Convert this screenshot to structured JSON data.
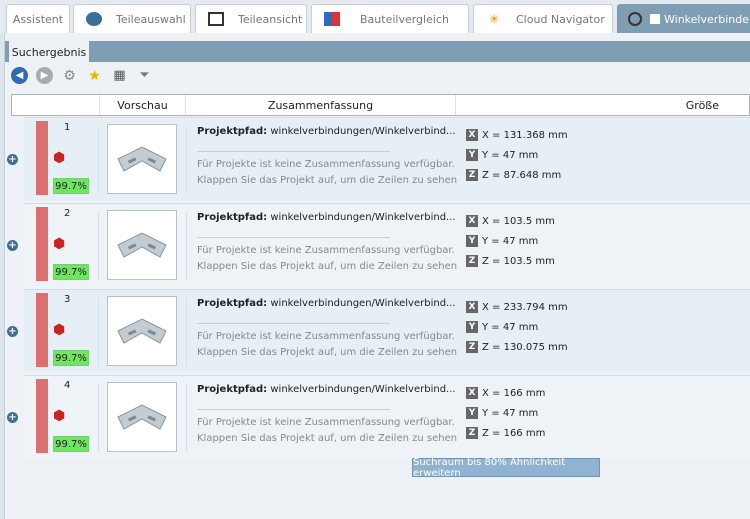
{
  "tabs": [
    {
      "label": "Assistent",
      "icon": ""
    },
    {
      "label": "Teileauswahl",
      "icon": "globe-icon"
    },
    {
      "label": "Teileansicht",
      "icon": "cubes-icon"
    },
    {
      "label": "Bauteilvergleich",
      "icon": "compare-icon"
    },
    {
      "label": "Cloud Navigator",
      "icon": "network-icon"
    },
    {
      "label": "Winkelverbinder",
      "icon": "search-magnifier-icon",
      "active": true
    }
  ],
  "subtab": "Suchergebnis",
  "toolbar": [
    "back-icon",
    "forward-icon",
    "gear-icon",
    "favorite-save-icon",
    "table-save-icon",
    "filter-save-icon"
  ],
  "columns": {
    "preview": "Vorschau",
    "summary": "Zusammenfassung",
    "size": "Größe"
  },
  "accent": "#7f9db3",
  "results": [
    {
      "rank": "1",
      "match": "99.7%",
      "path_label": "Projektpfad:",
      "path": "winkelverbindungen/Winkelverbind...",
      "desc1": "Für Projekte ist keine Zusammenfassung verfügbar.",
      "desc2": "Klappen Sie das Projekt auf, um die Zeilen zu sehen",
      "x": "X = 131.368 mm",
      "y": "Y = 47 mm",
      "z": "Z = 87.648 mm"
    },
    {
      "rank": "2",
      "match": "99.7%",
      "path_label": "Projektpfad:",
      "path": "winkelverbindungen/Winkelverbind...",
      "desc1": "Für Projekte ist keine Zusammenfassung verfügbar.",
      "desc2": "Klappen Sie das Projekt auf, um die Zeilen zu sehen",
      "x": "X = 103.5 mm",
      "y": "Y = 47 mm",
      "z": "Z = 103.5 mm"
    },
    {
      "rank": "3",
      "match": "99.7%",
      "path_label": "Projektpfad:",
      "path": "winkelverbindungen/Winkelverbind...",
      "desc1": "Für Projekte ist keine Zusammenfassung verfügbar.",
      "desc2": "Klappen Sie das Projekt auf, um die Zeilen zu sehen",
      "x": "X = 233.794 mm",
      "y": "Y = 47 mm",
      "z": "Z = 130.075 mm"
    },
    {
      "rank": "4",
      "match": "99.7%",
      "path_label": "Projektpfad:",
      "path": "winkelverbindungen/Winkelverbind...",
      "desc1": "Für Projekte ist keine Zusammenfassung verfügbar.",
      "desc2": "Klappen Sie das Projekt auf, um die Zeilen zu sehen",
      "x": "X = 166 mm",
      "y": "Y = 47 mm",
      "z": "Z = 166 mm"
    }
  ],
  "extend_button": "Suchraum bis 80% Ähnlichkeit erweitern"
}
